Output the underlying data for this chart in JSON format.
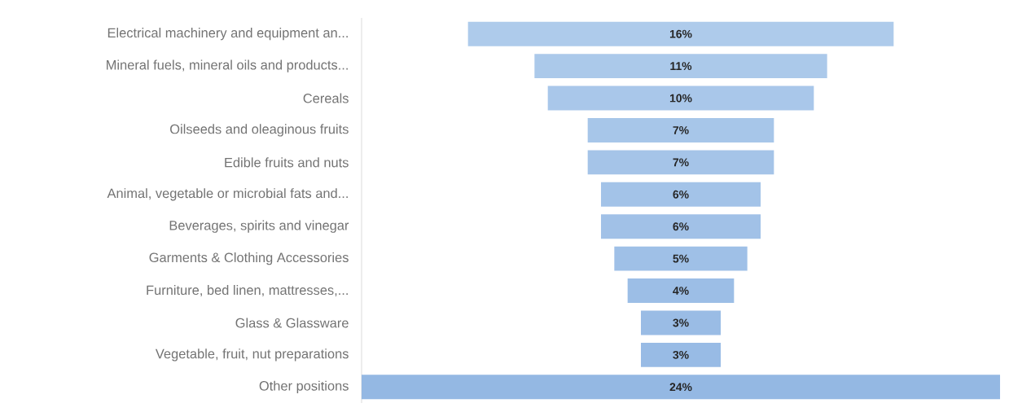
{
  "chart_data": {
    "type": "other",
    "categories": [
      "Electrical machinery and equipment an...",
      "Mineral fuels, mineral oils and products...",
      "Cereals",
      "Oilseeds and oleaginous fruits",
      "Edible fruits and nuts",
      "Animal, vegetable or microbial fats and...",
      "Beverages, spirits and vinegar",
      "Garments & Clothing Accessories",
      "Furniture, bed linen, mattresses,...",
      "Glass & Glassware",
      "Vegetable, fruit, nut preparations",
      "Other positions"
    ],
    "values": [
      16,
      11,
      10,
      7,
      7,
      6,
      6,
      5,
      4,
      3,
      3,
      24
    ],
    "value_labels": [
      "16%",
      "11%",
      "10%",
      "7%",
      "7%",
      "6%",
      "6%",
      "5%",
      "4%",
      "3%",
      "3%",
      "24%"
    ],
    "colors": [
      "#aecbeb",
      "#abc9ea",
      "#a9c7ea",
      "#a7c6e9",
      "#a5c4e8",
      "#a3c3e8",
      "#a1c1e7",
      "#9fc0e7",
      "#9cbee6",
      "#9abce5",
      "#98bbe5",
      "#94b8e3"
    ]
  }
}
